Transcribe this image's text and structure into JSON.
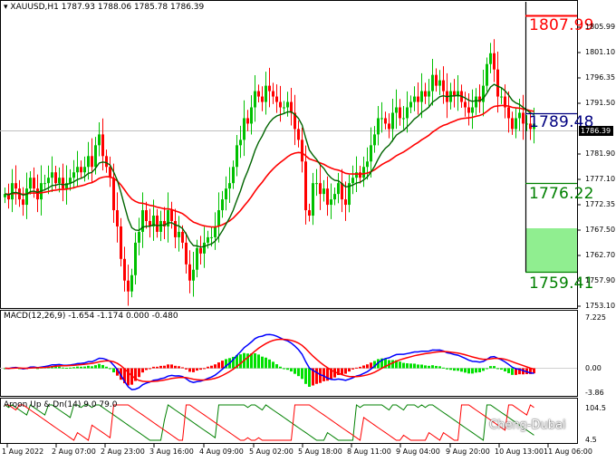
{
  "header": {
    "symbol": "XAUUSD,H1",
    "ohlc": "1787.93 1788.06 1785.78 1786.39"
  },
  "price_axis": {
    "ticks": [
      "1805.99",
      "1801.10",
      "1796.35",
      "1791.50",
      "1786.39",
      "1781.90",
      "1777.10",
      "1772.35",
      "1767.50",
      "1762.70",
      "1757.90",
      "1753.10"
    ],
    "current": "1786.39"
  },
  "levels": {
    "upper": "1807.99",
    "middle": "1789.48",
    "lower1": "1776.22",
    "lower2": "1759.41"
  },
  "macd": {
    "title": "MACD(12,26,9) -1.654 -1.174 0.000 -0.480",
    "ticks": [
      "7.225",
      "0.00",
      "-3.86"
    ]
  },
  "aroon": {
    "title": "Aroon Up & Dn(14) 9.0 79.0",
    "ticks": [
      "104.5",
      "4.5"
    ]
  },
  "time_axis": [
    "1 Aug 2022",
    "2 Aug 07:00",
    "2 Aug 23:00",
    "3 Aug 16:00",
    "4 Aug 09:00",
    "5 Aug 02:00",
    "5 Aug 18:00",
    "8 Aug 11:00",
    "9 Aug 04:00",
    "9 Aug 20:00",
    "10 Aug 13:00",
    "11 Aug 06:00"
  ],
  "watermark": "Cheng-Dubai",
  "colors": {
    "bull": "#00c000",
    "bear": "#ff0000",
    "ma_fast": "#006400",
    "ma_slow": "#ff0000",
    "macd_line": "#0000ff",
    "signal_line": "#ff0000",
    "hist_pos": "#00e000",
    "hist_neg": "#ff0000",
    "aroon_up": "#008000",
    "aroon_dn": "#ff0000",
    "zone_red": "#ff0000",
    "zone_green": "#90ee90"
  },
  "chart_data": {
    "type": "candlestick",
    "ylim": [
      1753.1,
      1809.5
    ],
    "closes": [
      1774,
      1773,
      1776,
      1775,
      1773,
      1772,
      1775,
      1777,
      1775,
      1773,
      1776,
      1776,
      1777,
      1778,
      1776,
      1777,
      1775,
      1776,
      1777,
      1778,
      1779,
      1778,
      1779,
      1781,
      1779,
      1783,
      1785,
      1781,
      1779,
      1777,
      1771,
      1768,
      1762,
      1758,
      1756,
      1759,
      1765,
      1767,
      1771,
      1769,
      1768,
      1770,
      1767,
      1769,
      1768,
      1771,
      1769,
      1766,
      1767,
      1765,
      1761,
      1758,
      1760,
      1764,
      1763,
      1765,
      1766,
      1766,
      1768,
      1771,
      1773,
      1775,
      1776,
      1779,
      1783,
      1784,
      1788,
      1787,
      1790,
      1793,
      1792,
      1791,
      1794,
      1793,
      1792,
      1791,
      1790,
      1790,
      1791,
      1789,
      1786,
      1784,
      1780,
      1771,
      1770,
      1776,
      1776,
      1774,
      1775,
      1772,
      1773,
      1774,
      1776,
      1773,
      1772,
      1776,
      1777,
      1778,
      1777,
      1779,
      1780,
      1783,
      1785,
      1788,
      1788,
      1787,
      1786,
      1789,
      1790,
      1788,
      1788,
      1790,
      1791,
      1792,
      1791,
      1793,
      1792,
      1793,
      1796,
      1794,
      1795,
      1793,
      1791,
      1793,
      1792,
      1793,
      1791,
      1790,
      1789,
      1790,
      1792,
      1791,
      1794,
      1798,
      1800,
      1797,
      1792,
      1792,
      1790,
      1788,
      1786,
      1788,
      1789,
      1787,
      1787,
      1786,
      1787
    ]
  }
}
